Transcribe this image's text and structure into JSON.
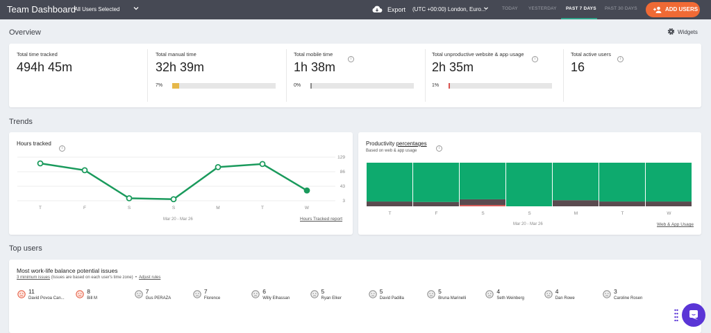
{
  "header": {
    "title": "Team Dashboard",
    "users_filter": "All Users Selected",
    "export_label": "Export",
    "timezone": "(UTC +00:00) London, Euro...",
    "ranges": [
      "TODAY",
      "YESTERDAY",
      "PAST 7 DAYS",
      "PAST 30 DAYS"
    ],
    "active_range": "PAST 7 DAYS",
    "add_users_label": "ADD USERS",
    "accent_color": "#f06a35"
  },
  "overview": {
    "title": "Overview",
    "widgets_label": "Widgets",
    "stats": [
      {
        "label": "Total time tracked",
        "value": "494h 45m"
      },
      {
        "label": "Total manual time",
        "value": "32h 39m",
        "pct_label": "7%",
        "pct": 7,
        "color": "#e6b84a"
      },
      {
        "label": "Total mobile time",
        "value": "1h 38m",
        "pct_label": "0%",
        "pct": 0,
        "color": "#888888"
      },
      {
        "label": "Total unproductive website & app usage",
        "value": "2h 35m",
        "pct_label": "1%",
        "pct": 1,
        "color": "#d9534f"
      },
      {
        "label": "Total active users",
        "value": "16"
      }
    ]
  },
  "trends": {
    "title": "Trends",
    "hours": {
      "title": "Hours tracked",
      "date_range": "Mar 20 - Mar 26",
      "report_link": "Hours Tracked report"
    },
    "productivity": {
      "title": "Productivity",
      "title_link": "percentages",
      "subtitle": "Based on web & app usage",
      "date_range": "Mar 20 - Mar 26",
      "report_link": "Web & App Usage"
    }
  },
  "chart_data": [
    {
      "type": "line",
      "categories": [
        "T",
        "F",
        "S",
        "S",
        "M",
        "T",
        "W"
      ],
      "values": [
        120,
        98,
        8,
        5,
        108,
        118,
        33
      ],
      "y_ticks": [
        129,
        86,
        43,
        3
      ],
      "ylim": [
        0,
        140
      ],
      "color": "#1a9a5c"
    },
    {
      "type": "bar",
      "stacked": true,
      "categories": [
        "T",
        "F",
        "S",
        "S",
        "M",
        "T",
        "W"
      ],
      "series": [
        {
          "values": [
            89,
            90,
            84,
            100,
            86,
            89,
            89
          ],
          "color": "#0eaa6e"
        },
        {
          "values": [
            11,
            10,
            13,
            0,
            14,
            11,
            11
          ],
          "color": "#5a4a4f"
        },
        {
          "values": [
            0,
            0,
            3,
            0,
            0,
            0,
            0
          ],
          "color": "#d9534f"
        }
      ],
      "ylim": [
        0,
        100
      ]
    }
  ],
  "top_users": {
    "title": "Top users",
    "card_title": "Most work-life balance potential issues",
    "min_issues": "3 minimum issues",
    "note": "(Issues are based on each user's time zone)",
    "adjust_link": "Adjust rules",
    "users": [
      {
        "count": "11",
        "name": "David Povoa Can...",
        "mood": "red"
      },
      {
        "count": "8",
        "name": "Bill M",
        "mood": "red"
      },
      {
        "count": "7",
        "name": "Gus PERAZA",
        "mood": "gray"
      },
      {
        "count": "7",
        "name": "Florence",
        "mood": "gray"
      },
      {
        "count": "6",
        "name": "Willy Elhassan",
        "mood": "gray"
      },
      {
        "count": "5",
        "name": "Ryan Elker",
        "mood": "gray"
      },
      {
        "count": "5",
        "name": "David Padilla",
        "mood": "gray"
      },
      {
        "count": "5",
        "name": "Bruna Marinelli",
        "mood": "gray"
      },
      {
        "count": "4",
        "name": "Seth Weinberg",
        "mood": "gray"
      },
      {
        "count": "4",
        "name": "Dan Rowe",
        "mood": "gray"
      },
      {
        "count": "3",
        "name": "Caroline Rosen",
        "mood": "gray"
      }
    ]
  }
}
